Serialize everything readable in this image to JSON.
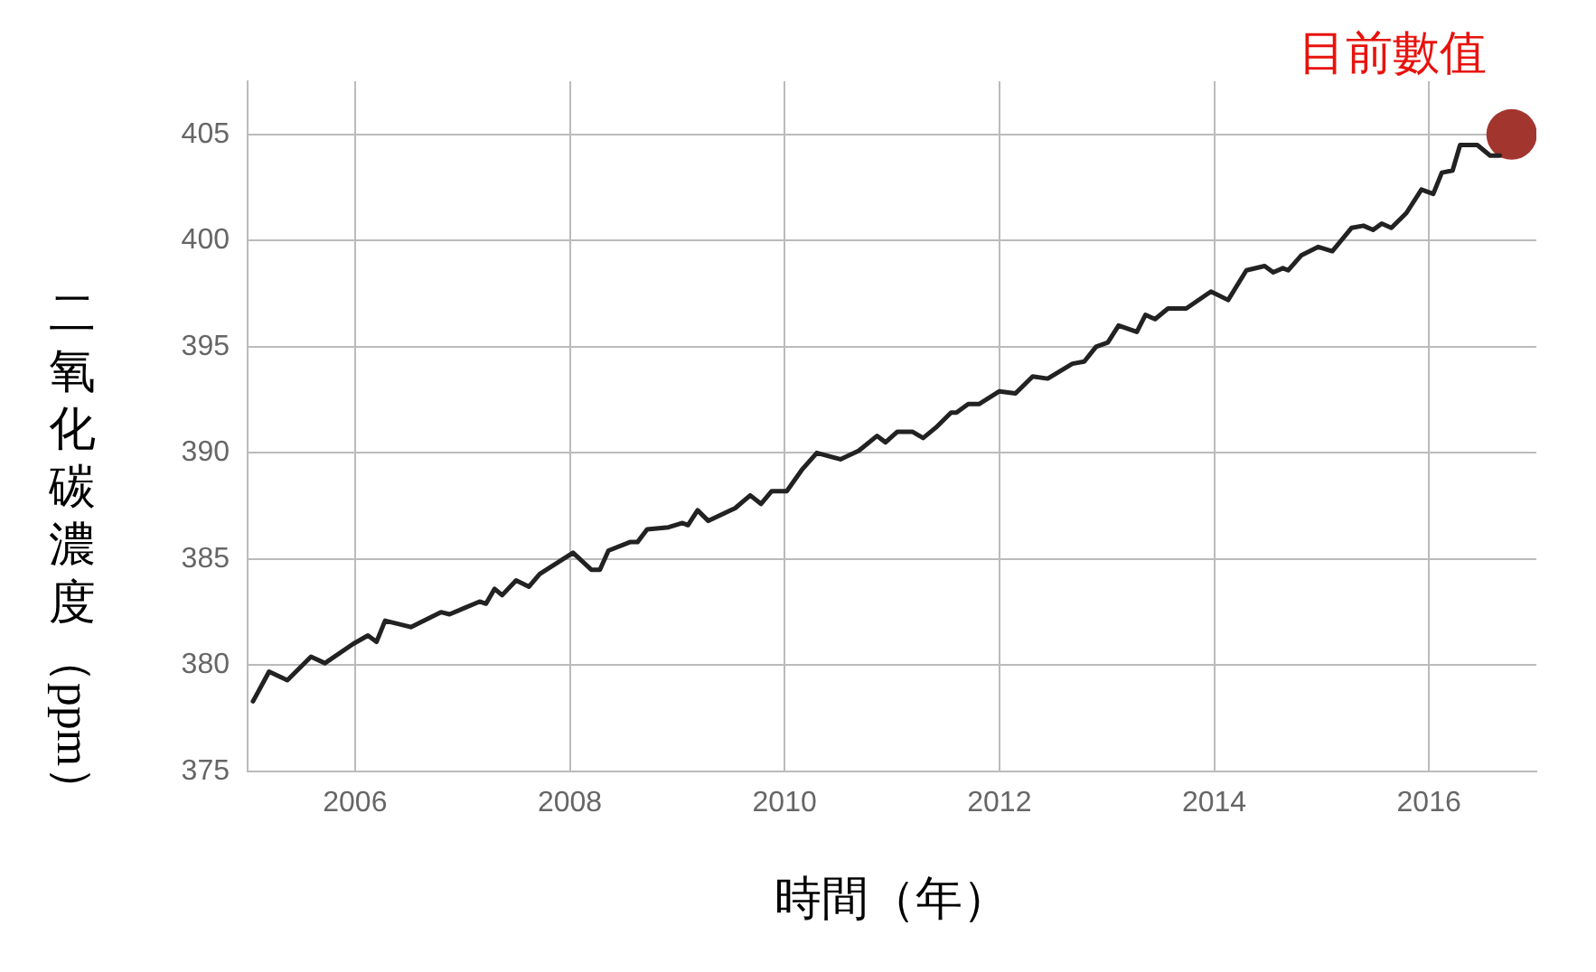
{
  "chart_data": {
    "type": "line",
    "xlabel": "時間（年）",
    "ylabel": "二氧化碳濃度（ppm）",
    "xlim": [
      2005,
      2017
    ],
    "xticks": [
      2006,
      2008,
      2010,
      2012,
      2014,
      2016
    ],
    "ylim": [
      375,
      407.5
    ],
    "yticks": [
      375,
      380,
      385,
      390,
      395,
      400,
      405
    ],
    "grid": true,
    "legend": false,
    "marker": "none",
    "line_style": "solid",
    "annotations": [
      {
        "text": "目前數值",
        "x": 2016.77,
        "y": 405
      }
    ],
    "series": [
      {
        "color": "#222222",
        "x": [
          2005.05,
          2005.2,
          2005.37,
          2005.59,
          2005.72,
          2005.98,
          2006.12,
          2006.2,
          2006.28,
          2006.52,
          2006.8,
          2006.88,
          2007.16,
          2007.22,
          2007.3,
          2007.37,
          2007.5,
          2007.62,
          2007.72,
          2008.03,
          2008.2,
          2008.28,
          2008.36,
          2008.56,
          2008.63,
          2008.72,
          2008.92,
          2009.05,
          2009.1,
          2009.19,
          2009.29,
          2009.54,
          2009.68,
          2009.78,
          2009.88,
          2010.02,
          2010.16,
          2010.3,
          2010.52,
          2010.69,
          2010.86,
          2010.94,
          2011.05,
          2011.19,
          2011.29,
          2011.41,
          2011.55,
          2011.6,
          2011.71,
          2011.81,
          2012.0,
          2012.15,
          2012.31,
          2012.45,
          2012.68,
          2012.79,
          2012.9,
          2013.01,
          2013.11,
          2013.28,
          2013.36,
          2013.45,
          2013.57,
          2013.74,
          2013.97,
          2014.13,
          2014.3,
          2014.47,
          2014.55,
          2014.64,
          2014.69,
          2014.81,
          2014.97,
          2015.1,
          2015.28,
          2015.39,
          2015.48,
          2015.56,
          2015.65,
          2015.79,
          2015.93,
          2016.04,
          2016.12,
          2016.22,
          2016.29,
          2016.4,
          2016.45,
          2016.57,
          2016.66
        ],
        "values": [
          378.3,
          379.7,
          379.3,
          380.4,
          380.1,
          381.0,
          381.4,
          381.1,
          382.1,
          381.8,
          382.5,
          382.4,
          383.0,
          382.9,
          383.6,
          383.3,
          384.0,
          383.7,
          384.3,
          385.3,
          384.5,
          384.5,
          385.4,
          385.8,
          385.8,
          386.4,
          386.5,
          386.7,
          386.6,
          387.3,
          386.8,
          387.4,
          388.0,
          387.6,
          388.2,
          388.2,
          389.2,
          390.0,
          389.7,
          390.1,
          390.8,
          390.5,
          391.0,
          391.0,
          390.7,
          391.2,
          391.9,
          391.9,
          392.3,
          392.3,
          392.9,
          392.8,
          393.6,
          393.5,
          394.2,
          394.3,
          395.0,
          395.2,
          396.0,
          395.7,
          396.5,
          396.3,
          396.8,
          396.8,
          397.6,
          397.2,
          398.6,
          398.8,
          398.5,
          398.7,
          398.6,
          399.3,
          399.7,
          399.5,
          400.6,
          400.7,
          400.5,
          400.8,
          400.6,
          401.3,
          402.4,
          402.2,
          403.2,
          403.3,
          404.5,
          404.5,
          404.5,
          404.0,
          404.0
        ]
      },
      {
        "type": "scatter",
        "color": "#a3352f",
        "marker": "circle",
        "x": [
          2016.77
        ],
        "values": [
          405
        ]
      }
    ]
  }
}
